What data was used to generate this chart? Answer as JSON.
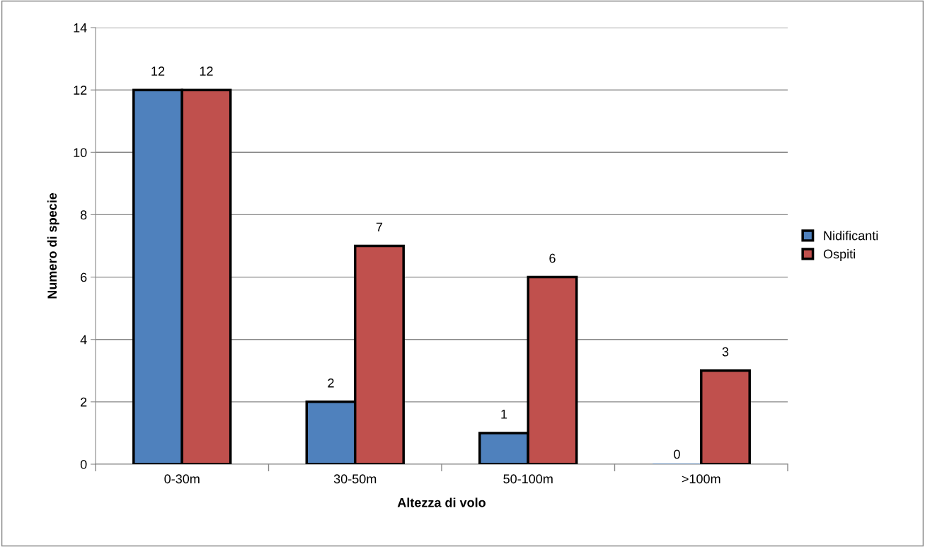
{
  "chart_data": {
    "type": "bar",
    "xlabel": "Altezza di volo",
    "ylabel": "Numero di specie",
    "categories": [
      "0-30m",
      "30-50m",
      "50-100m",
      ">100m"
    ],
    "series": [
      {
        "name": "Nidificanti",
        "color": "#4f81bd",
        "values": [
          12,
          2,
          1,
          0
        ]
      },
      {
        "name": "Ospiti",
        "color": "#c0504d",
        "values": [
          12,
          7,
          6,
          3
        ]
      }
    ],
    "ylim": [
      0,
      14
    ],
    "yticks": [
      0,
      2,
      4,
      6,
      8,
      10,
      12,
      14
    ],
    "grid": "y",
    "legend": "right",
    "data_labels": true
  }
}
